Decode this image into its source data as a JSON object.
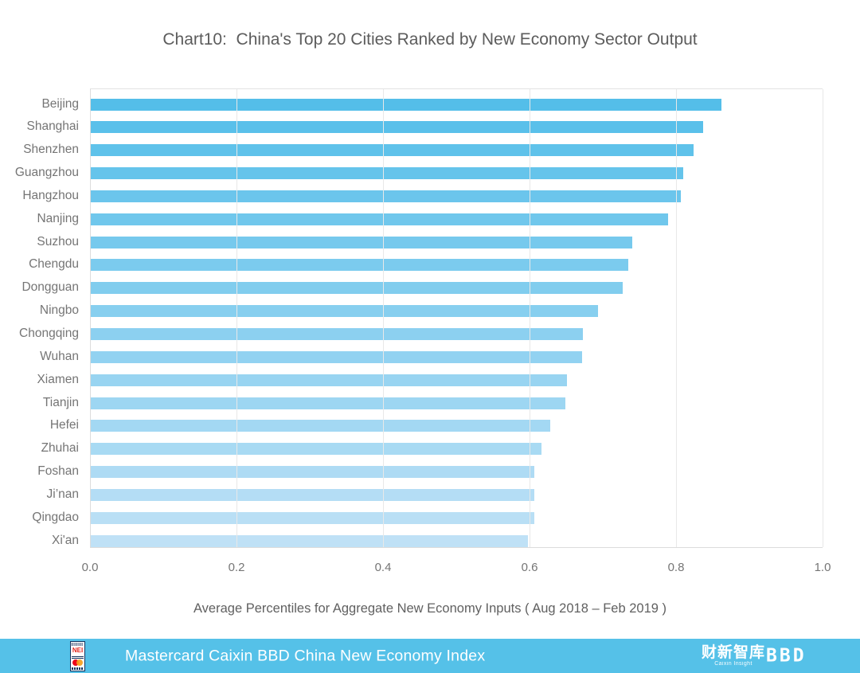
{
  "chart_data": {
    "type": "bar",
    "orientation": "horizontal",
    "title": "Chart10:  China's Top 20 Cities Ranked by New Economy Sector Output",
    "categories": [
      "Beijing",
      "Shanghai",
      "Shenzhen",
      "Guangzhou",
      "Hangzhou",
      "Nanjing",
      "Suzhou",
      "Chengdu",
      "Dongguan",
      "Ningbo",
      "Chongqing",
      "Wuhan",
      "Xiamen",
      "Tianjin",
      "Hefei",
      "Zhuhai",
      "Foshan",
      "Ji’nan",
      "Qingdao",
      "Xi'an"
    ],
    "values": [
      0.862,
      0.837,
      0.824,
      0.81,
      0.806,
      0.789,
      0.74,
      0.735,
      0.727,
      0.693,
      0.673,
      0.672,
      0.651,
      0.649,
      0.628,
      0.616,
      0.607,
      0.606,
      0.606,
      0.598
    ],
    "xlabel": "Average Percentiles for Aggregate New Economy Inputs ( Aug 2018 – Feb 2019 )",
    "ylabel": "",
    "xlim": [
      0,
      1.0
    ],
    "xticks": [
      "0.0",
      "0.2",
      "0.4",
      "0.6",
      "0.8",
      "1.0"
    ],
    "grid": "vertical",
    "legend": "none",
    "bar_color_start": "#54BEE9",
    "bar_color_end": "#BFE1F6",
    "gridline_color": "#E8E8E8"
  },
  "footer": {
    "bar_color": "#55C1E8",
    "title": "Mastercard Caixin BBD China New Economy Index",
    "nei_logo_text": "NEI",
    "caixin_logo_text": "财新智库",
    "caixin_logo_subtext": "Caixin Insight",
    "bbd_logo_text": "BBD"
  }
}
